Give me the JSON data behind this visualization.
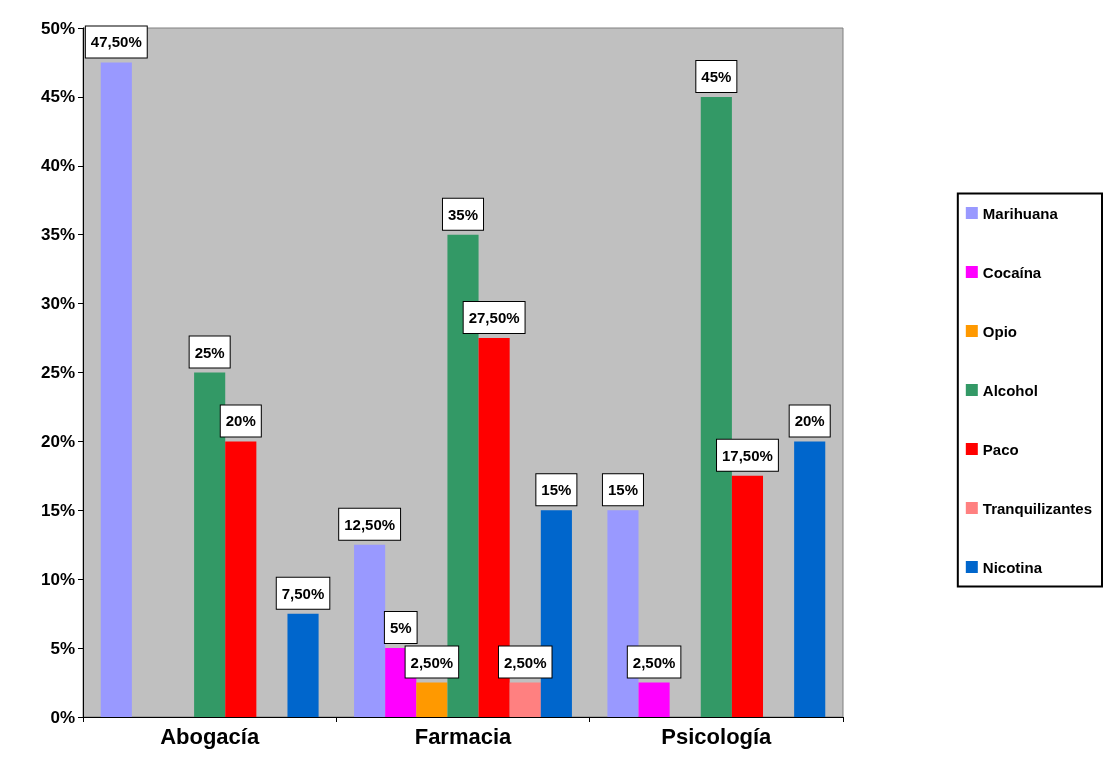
{
  "chart_data": {
    "type": "bar",
    "categories": [
      "Abogacía",
      "Farmacia",
      "Psicología"
    ],
    "series": [
      {
        "name": "Marihuana",
        "color": "#9999ff",
        "values": [
          47.5,
          12.5,
          15
        ],
        "value_labels": [
          "47,50%",
          "12,50%",
          "15%"
        ]
      },
      {
        "name": "Cocaína",
        "color": "#ff00ff",
        "values": [
          0,
          5,
          2.5
        ],
        "value_labels": [
          null,
          "5%",
          "2,50%"
        ]
      },
      {
        "name": "Opio",
        "color": "#ff9900",
        "values": [
          0,
          2.5,
          0
        ],
        "value_labels": [
          null,
          "2,50%",
          null
        ]
      },
      {
        "name": "Alcohol",
        "color": "#339966",
        "values": [
          25,
          35,
          45
        ],
        "value_labels": [
          "25%",
          "35%",
          "45%"
        ]
      },
      {
        "name": "Paco",
        "color": "#ff0000",
        "values": [
          20,
          27.5,
          17.5
        ],
        "value_labels": [
          "20%",
          "27,50%",
          "17,50%"
        ]
      },
      {
        "name": "Tranquilizantes",
        "color": "#ff8080",
        "values": [
          0,
          2.5,
          0
        ],
        "value_labels": [
          null,
          "2,50%",
          null
        ]
      },
      {
        "name": "Nicotina",
        "color": "#0066cc",
        "values": [
          7.5,
          15,
          20
        ],
        "value_labels": [
          "7,50%",
          "15%",
          "20%"
        ]
      }
    ],
    "ylim": [
      0,
      50
    ],
    "yticks": [
      {
        "value": 0,
        "label": "0%"
      },
      {
        "value": 5,
        "label": "5%"
      },
      {
        "value": 10,
        "label": "10%"
      },
      {
        "value": 15,
        "label": "15%"
      },
      {
        "value": 20,
        "label": "20%"
      },
      {
        "value": 25,
        "label": "25%"
      },
      {
        "value": 30,
        "label": "30%"
      },
      {
        "value": 35,
        "label": "35%"
      },
      {
        "value": 40,
        "label": "40%"
      },
      {
        "value": 45,
        "label": "45%"
      },
      {
        "value": 50,
        "label": "50%"
      }
    ],
    "grid": false,
    "legend": "right"
  }
}
